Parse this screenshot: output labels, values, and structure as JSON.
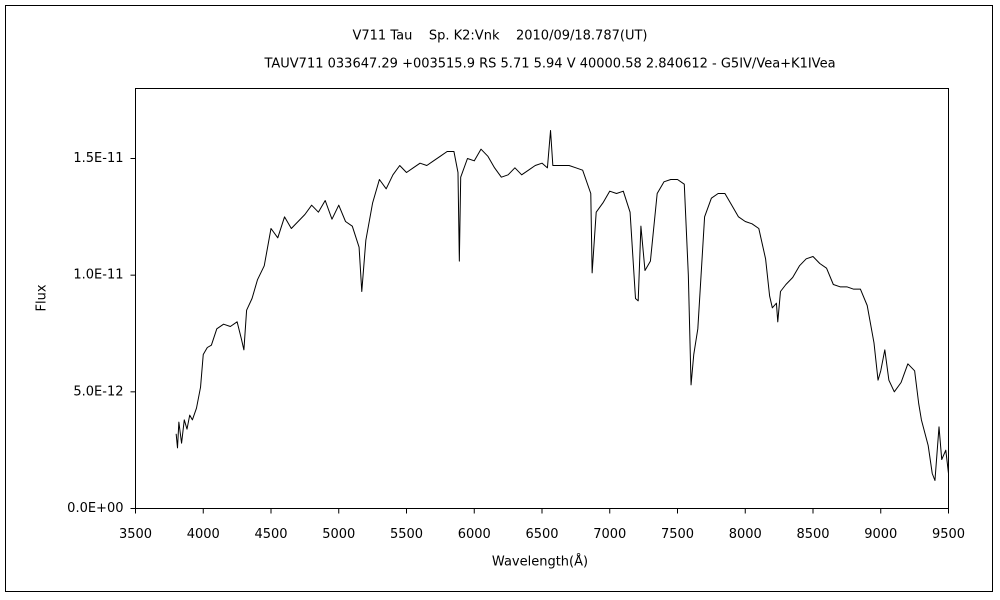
{
  "chart_data": {
    "type": "line",
    "title": "V711 Tau    Sp. K2:Vnk    2010/09/18.787(UT)",
    "subtitle": "TAUV711 033647.29 +003515.9 RS 5.71 5.94 V 40000.58 2.840612 - G5IV/Vea+K1IVea",
    "x_label": "Wavelength(Å)",
    "y_label": "Flux",
    "xlim": [
      3500,
      9500
    ],
    "xticks": [
      3500,
      4000,
      4500,
      5000,
      5500,
      6000,
      6500,
      7000,
      7500,
      8000,
      8500,
      9000,
      9500
    ],
    "ylim": [
      0,
      1.8e-11
    ],
    "yticks": [
      {
        "value": 0,
        "label": "0.0E+00"
      },
      {
        "value": 5e-12,
        "label": "5.0E-12"
      },
      {
        "value": 1e-11,
        "label": "1.0E-11"
      },
      {
        "value": 1.5e-11,
        "label": "1.5E-11"
      }
    ],
    "grid": false,
    "color": "#000000",
    "x": [
      3800,
      3810,
      3820,
      3840,
      3860,
      3880,
      3900,
      3920,
      3950,
      3980,
      4000,
      4030,
      4060,
      4100,
      4150,
      4200,
      4250,
      4280,
      4300,
      4320,
      4360,
      4400,
      4450,
      4500,
      4550,
      4600,
      4650,
      4700,
      4750,
      4800,
      4850,
      4900,
      4950,
      5000,
      5050,
      5100,
      5150,
      5170,
      5200,
      5250,
      5300,
      5350,
      5400,
      5450,
      5500,
      5550,
      5600,
      5650,
      5700,
      5750,
      5800,
      5850,
      5880,
      5890,
      5900,
      5950,
      6000,
      6050,
      6100,
      6150,
      6200,
      6250,
      6300,
      6350,
      6400,
      6450,
      6500,
      6540,
      6563,
      6580,
      6650,
      6700,
      6750,
      6800,
      6860,
      6870,
      6900,
      6950,
      7000,
      7050,
      7100,
      7150,
      7190,
      7210,
      7230,
      7260,
      7300,
      7350,
      7400,
      7450,
      7500,
      7550,
      7580,
      7600,
      7620,
      7650,
      7700,
      7750,
      7800,
      7850,
      7900,
      7950,
      8000,
      8050,
      8100,
      8150,
      8180,
      8200,
      8230,
      8240,
      8260,
      8300,
      8350,
      8400,
      8450,
      8500,
      8550,
      8600,
      8650,
      8700,
      8750,
      8800,
      8850,
      8900,
      8950,
      8980,
      9000,
      9030,
      9060,
      9100,
      9150,
      9200,
      9250,
      9280,
      9300,
      9350,
      9380,
      9400,
      9430,
      9450,
      9480,
      9500
    ],
    "values": [
      3.2e-12,
      2.6e-12,
      3.7e-12,
      2.8e-12,
      3.8e-12,
      3.4e-12,
      4e-12,
      3.8e-12,
      4.3e-12,
      5.2e-12,
      6.6e-12,
      6.9e-12,
      7e-12,
      7.7e-12,
      7.9e-12,
      7.8e-12,
      8e-12,
      7.3e-12,
      6.8e-12,
      8.5e-12,
      9e-12,
      9.8e-12,
      1.04e-11,
      1.2e-11,
      1.16e-11,
      1.25e-11,
      1.2e-11,
      1.23e-11,
      1.26e-11,
      1.3e-11,
      1.27e-11,
      1.32e-11,
      1.24e-11,
      1.3e-11,
      1.23e-11,
      1.21e-11,
      1.12e-11,
      9.3e-12,
      1.15e-11,
      1.31e-11,
      1.41e-11,
      1.37e-11,
      1.43e-11,
      1.47e-11,
      1.44e-11,
      1.46e-11,
      1.48e-11,
      1.47e-11,
      1.49e-11,
      1.51e-11,
      1.53e-11,
      1.53e-11,
      1.44e-11,
      1.06e-11,
      1.42e-11,
      1.5e-11,
      1.49e-11,
      1.54e-11,
      1.51e-11,
      1.46e-11,
      1.42e-11,
      1.43e-11,
      1.46e-11,
      1.43e-11,
      1.45e-11,
      1.47e-11,
      1.48e-11,
      1.46e-11,
      1.62e-11,
      1.47e-11,
      1.47e-11,
      1.47e-11,
      1.46e-11,
      1.45e-11,
      1.35e-11,
      1.01e-11,
      1.27e-11,
      1.31e-11,
      1.36e-11,
      1.35e-11,
      1.36e-11,
      1.27e-11,
      9e-12,
      8.9e-12,
      1.21e-11,
      1.02e-11,
      1.06e-11,
      1.35e-11,
      1.4e-11,
      1.41e-11,
      1.41e-11,
      1.39e-11,
      1e-11,
      5.3e-12,
      6.6e-12,
      7.7e-12,
      1.25e-11,
      1.33e-11,
      1.35e-11,
      1.35e-11,
      1.3e-11,
      1.25e-11,
      1.23e-11,
      1.22e-11,
      1.2e-11,
      1.07e-11,
      9.1e-12,
      8.6e-12,
      8.8e-12,
      8e-12,
      9.3e-12,
      9.6e-12,
      9.9e-12,
      1.04e-11,
      1.07e-11,
      1.08e-11,
      1.05e-11,
      1.03e-11,
      9.6e-12,
      9.5e-12,
      9.5e-12,
      9.4e-12,
      9.4e-12,
      8.7e-12,
      7.1e-12,
      5.5e-12,
      5.9e-12,
      6.8e-12,
      5.5e-12,
      5e-12,
      5.4e-12,
      6.2e-12,
      5.9e-12,
      4.5e-12,
      3.8e-12,
      2.7e-12,
      1.5e-12,
      1.2e-12,
      3.5e-12,
      2.1e-12,
      2.5e-12,
      1.5e-12
    ]
  }
}
